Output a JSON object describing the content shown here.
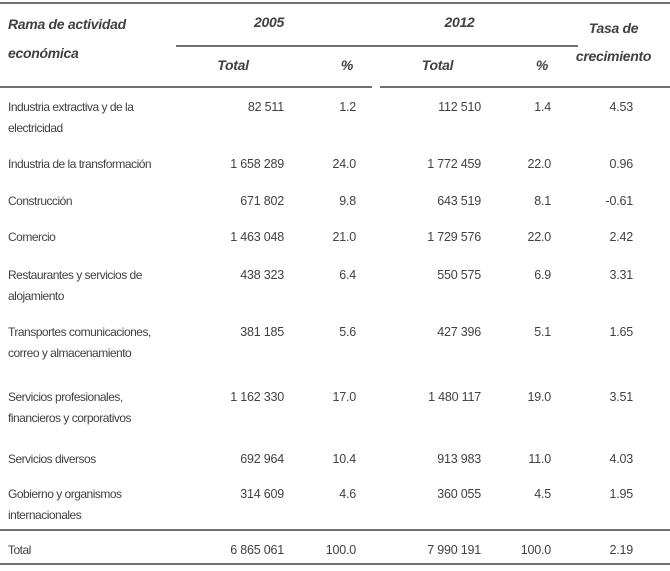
{
  "header": {
    "row_label": "Rama de actividad económica",
    "group_2005": "2005",
    "group_2012": "2012",
    "total_label": "Total",
    "pct_label": "%",
    "growth_label": "Tasa de crecimiento"
  },
  "rows": [
    {
      "label": "Industria extractiva y de la electricidad",
      "total_2005": "82 511",
      "pct_2005": "1.2",
      "total_2012": "112 510",
      "pct_2012": "1.4",
      "growth": "4.53"
    },
    {
      "label": "Industria de la transformación",
      "total_2005": "1 658 289",
      "pct_2005": "24.0",
      "total_2012": "1 772 459",
      "pct_2012": "22.0",
      "growth": "0.96"
    },
    {
      "label": "Construcción",
      "total_2005": "671 802",
      "pct_2005": "9.8",
      "total_2012": "643 519",
      "pct_2012": "8.1",
      "growth": "-0.61"
    },
    {
      "label": "Comercio",
      "total_2005": "1 463 048",
      "pct_2005": "21.0",
      "total_2012": "1 729 576",
      "pct_2012": "22.0",
      "growth": "2.42"
    },
    {
      "label": "Restaurantes y servicios de alojamiento",
      "total_2005": "438 323",
      "pct_2005": "6.4",
      "total_2012": "550 575",
      "pct_2012": "6.9",
      "growth": "3.31"
    },
    {
      "label": "Transportes comunicaciones, correo y almacenamiento",
      "total_2005": "381 185",
      "pct_2005": "5.6",
      "total_2012": "427 396",
      "pct_2012": "5.1",
      "growth": "1.65"
    },
    {
      "label": "Servicios profesionales, financieros y corporativos",
      "total_2005": "1 162 330",
      "pct_2005": "17.0",
      "total_2012": "1 480 117",
      "pct_2012": "19.0",
      "growth": "3.51"
    },
    {
      "label": "Servicios diversos",
      "total_2005": "692 964",
      "pct_2005": "10.4",
      "total_2012": "913 983",
      "pct_2012": "11.0",
      "growth": "4.03"
    },
    {
      "label": "Gobierno y organismos internacionales",
      "total_2005": "314 609",
      "pct_2005": "4.6",
      "total_2012": "360 055",
      "pct_2012": "4.5",
      "growth": "1.95"
    }
  ],
  "total_row": {
    "label": "Total",
    "total_2005": "6 865 061",
    "pct_2005": "100.0",
    "total_2012": "7 990 191",
    "pct_2012": "100.0",
    "growth": "2.19"
  },
  "colors": {
    "text": "#414143",
    "rule": "#707173",
    "background": "#ffffff"
  },
  "chart_data": {
    "type": "table",
    "columns": [
      "Rama de actividad económica",
      "2005 Total",
      "2005 %",
      "2012 Total",
      "2012 %",
      "Tasa de crecimiento"
    ],
    "rows": [
      [
        "Industria extractiva y de la electricidad",
        82511,
        1.2,
        112510,
        1.4,
        4.53
      ],
      [
        "Industria de la transformación",
        1658289,
        24.0,
        1772459,
        22.0,
        0.96
      ],
      [
        "Construcción",
        671802,
        9.8,
        643519,
        8.1,
        -0.61
      ],
      [
        "Comercio",
        1463048,
        21.0,
        1729576,
        22.0,
        2.42
      ],
      [
        "Restaurantes y servicios de alojamiento",
        438323,
        6.4,
        550575,
        6.9,
        3.31
      ],
      [
        "Transportes comunicaciones, correo y almacenamiento",
        381185,
        5.6,
        427396,
        5.1,
        1.65
      ],
      [
        "Servicios profesionales, financieros y corporativos",
        1162330,
        17.0,
        1480117,
        19.0,
        3.51
      ],
      [
        "Servicios diversos",
        692964,
        10.4,
        913983,
        11.0,
        4.03
      ],
      [
        "Gobierno y organismos internacionales",
        314609,
        4.6,
        360055,
        4.5,
        1.95
      ],
      [
        "Total",
        6865061,
        100.0,
        7990191,
        100.0,
        2.19
      ]
    ]
  }
}
